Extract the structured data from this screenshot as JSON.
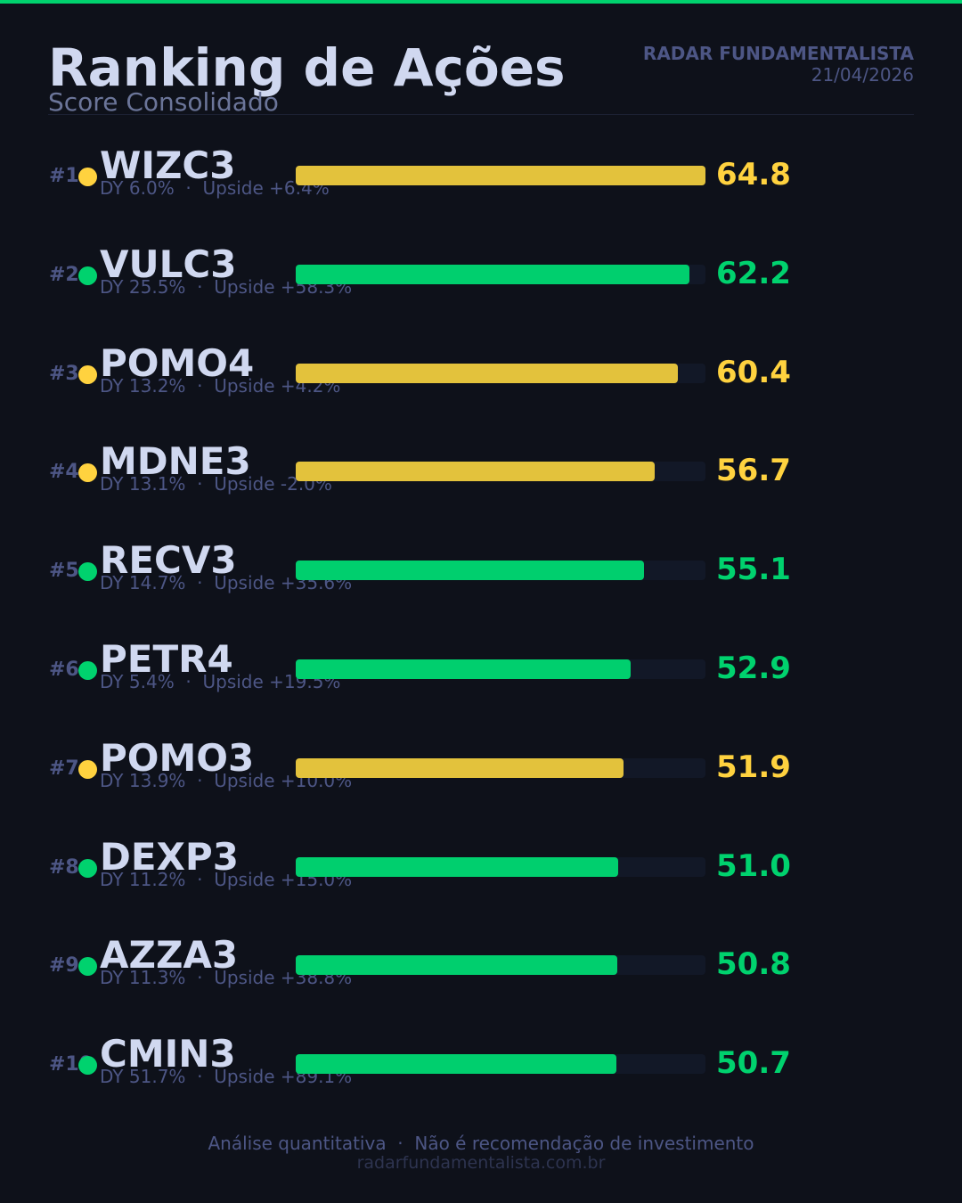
{
  "header": {
    "title": "Ranking de Ações",
    "subtitle": "Score Consolidado",
    "brand": "RADAR FUNDAMENTALISTA",
    "date": "21/04/2026"
  },
  "colors": {
    "accent_green": "#00d26e",
    "accent_yellow": "#ffd23f",
    "bar_yellow": "#e3c23c",
    "bar_green": "#00cf6e",
    "track": "#121827",
    "background": "#0e111a"
  },
  "rows": [
    {
      "rank": "#1",
      "ticker": "WIZC3",
      "meta": "DY 6.0%  ·  Upside +6.4%",
      "score": "64.8",
      "color": "yellow"
    },
    {
      "rank": "#2",
      "ticker": "VULC3",
      "meta": "DY 25.5%  ·  Upside +58.3%",
      "score": "62.2",
      "color": "green"
    },
    {
      "rank": "#3",
      "ticker": "POMO4",
      "meta": "DY 13.2%  ·  Upside +4.2%",
      "score": "60.4",
      "color": "yellow"
    },
    {
      "rank": "#4",
      "ticker": "MDNE3",
      "meta": "DY 13.1%  ·  Upside -2.0%",
      "score": "56.7",
      "color": "yellow"
    },
    {
      "rank": "#5",
      "ticker": "RECV3",
      "meta": "DY 14.7%  ·  Upside +35.6%",
      "score": "55.1",
      "color": "green"
    },
    {
      "rank": "#6",
      "ticker": "PETR4",
      "meta": "DY 5.4%  ·  Upside +19.5%",
      "score": "52.9",
      "color": "green"
    },
    {
      "rank": "#7",
      "ticker": "POMO3",
      "meta": "DY 13.9%  ·  Upside +10.0%",
      "score": "51.9",
      "color": "yellow"
    },
    {
      "rank": "#8",
      "ticker": "DEXP3",
      "meta": "DY 11.2%  ·  Upside +15.0%",
      "score": "51.0",
      "color": "green"
    },
    {
      "rank": "#9",
      "ticker": "AZZA3",
      "meta": "DY 11.3%  ·  Upside +38.8%",
      "score": "50.8",
      "color": "green"
    },
    {
      "rank": "#10",
      "ticker": "CMIN3",
      "meta": "DY 51.7%  ·  Upside +89.1%",
      "score": "50.7",
      "color": "green"
    }
  ],
  "footer": {
    "disclaimer": "Análise quantitativa  ·  Não é recomendação de investimento",
    "website": "radarfundamentalista.com.br"
  },
  "chart_data": {
    "type": "bar",
    "orientation": "horizontal",
    "title": "Ranking de Ações",
    "subtitle": "Score Consolidado",
    "categories": [
      "WIZC3",
      "VULC3",
      "POMO4",
      "MDNE3",
      "RECV3",
      "PETR4",
      "POMO3",
      "DEXP3",
      "AZZA3",
      "CMIN3"
    ],
    "values": [
      64.8,
      62.2,
      60.4,
      56.7,
      55.1,
      52.9,
      51.9,
      51.0,
      50.8,
      50.7
    ],
    "dy_percent": [
      6.0,
      25.5,
      13.2,
      13.1,
      14.7,
      5.4,
      13.9,
      11.2,
      11.3,
      51.7
    ],
    "upside_percent": [
      6.4,
      58.3,
      4.2,
      -2.0,
      35.6,
      19.5,
      10.0,
      15.0,
      38.8,
      89.1
    ],
    "bar_colors": [
      "yellow",
      "green",
      "yellow",
      "yellow",
      "green",
      "green",
      "yellow",
      "green",
      "green",
      "green"
    ],
    "xlabel": "",
    "ylabel": "",
    "xlim": [
      0,
      64.8
    ],
    "grid": false,
    "legend": "none"
  }
}
